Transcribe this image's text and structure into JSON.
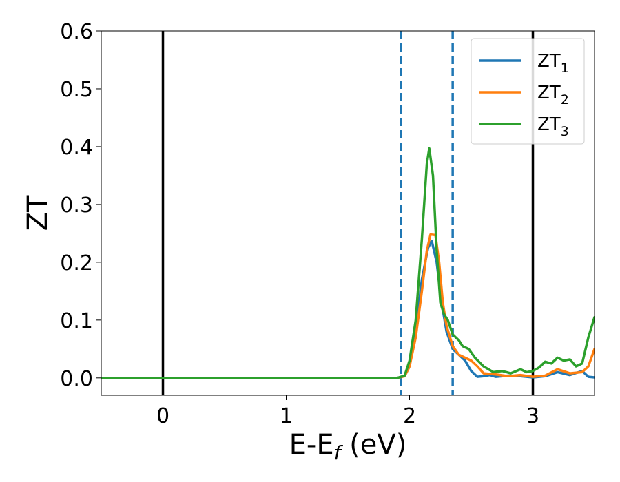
{
  "chart_data": {
    "type": "line",
    "xlabel": {
      "main": "E-E",
      "sub": "f",
      "tail": " (eV)"
    },
    "ylabel": "ZT",
    "xlim": [
      -0.5,
      3.5
    ],
    "ylim": [
      -0.03,
      0.6
    ],
    "xticks": [
      0,
      1,
      2,
      3
    ],
    "yticks": [
      0.0,
      0.1,
      0.2,
      0.3,
      0.4,
      0.5,
      0.6
    ],
    "ytick_labels": [
      "0.0",
      "0.1",
      "0.2",
      "0.3",
      "0.4",
      "0.5",
      "0.6"
    ],
    "xtick_labels": [
      "0",
      "1",
      "2",
      "3"
    ],
    "grid": false,
    "legend_position": "top-right",
    "vlines": [
      {
        "x": 0,
        "style": "solid",
        "color": "#000000"
      },
      {
        "x": 3,
        "style": "solid",
        "color": "#000000"
      },
      {
        "x": 1.93,
        "style": "dashed",
        "color": "#1f77b4"
      },
      {
        "x": 2.35,
        "style": "dashed",
        "color": "#1f77b4"
      }
    ],
    "series": [
      {
        "name": "ZT",
        "sub": "1",
        "color": "#1f77b4",
        "points": [
          [
            -0.5,
            0
          ],
          [
            1.9,
            0
          ],
          [
            1.96,
            0.003
          ],
          [
            2.0,
            0.02
          ],
          [
            2.05,
            0.08
          ],
          [
            2.1,
            0.17
          ],
          [
            2.15,
            0.225
          ],
          [
            2.18,
            0.237
          ],
          [
            2.22,
            0.2
          ],
          [
            2.26,
            0.13
          ],
          [
            2.3,
            0.08
          ],
          [
            2.35,
            0.05
          ],
          [
            2.4,
            0.04
          ],
          [
            2.45,
            0.03
          ],
          [
            2.5,
            0.012
          ],
          [
            2.55,
            0.002
          ],
          [
            2.6,
            0.003
          ],
          [
            2.65,
            0.005
          ],
          [
            2.7,
            0.002
          ],
          [
            2.8,
            0.004
          ],
          [
            2.9,
            0.003
          ],
          [
            3.0,
            0.001
          ],
          [
            3.1,
            0.003
          ],
          [
            3.2,
            0.01
          ],
          [
            3.3,
            0.005
          ],
          [
            3.4,
            0.012
          ],
          [
            3.45,
            0.002
          ],
          [
            3.5,
            0.001
          ]
        ]
      },
      {
        "name": "ZT",
        "sub": "2",
        "color": "#ff7f0e",
        "points": [
          [
            -0.5,
            0
          ],
          [
            1.9,
            0
          ],
          [
            1.96,
            0.003
          ],
          [
            2.0,
            0.02
          ],
          [
            2.05,
            0.07
          ],
          [
            2.1,
            0.15
          ],
          [
            2.14,
            0.22
          ],
          [
            2.17,
            0.248
          ],
          [
            2.21,
            0.247
          ],
          [
            2.24,
            0.2
          ],
          [
            2.27,
            0.13
          ],
          [
            2.3,
            0.09
          ],
          [
            2.35,
            0.055
          ],
          [
            2.4,
            0.04
          ],
          [
            2.45,
            0.035
          ],
          [
            2.5,
            0.03
          ],
          [
            2.55,
            0.02
          ],
          [
            2.6,
            0.008
          ],
          [
            2.7,
            0.006
          ],
          [
            2.8,
            0.003
          ],
          [
            2.9,
            0.005
          ],
          [
            3.0,
            0.002
          ],
          [
            3.1,
            0.004
          ],
          [
            3.2,
            0.015
          ],
          [
            3.3,
            0.008
          ],
          [
            3.4,
            0.01
          ],
          [
            3.45,
            0.02
          ],
          [
            3.5,
            0.05
          ]
        ]
      },
      {
        "name": "ZT",
        "sub": "3",
        "color": "#2ca02c",
        "points": [
          [
            -0.5,
            0
          ],
          [
            1.9,
            0
          ],
          [
            1.96,
            0.004
          ],
          [
            2.0,
            0.03
          ],
          [
            2.05,
            0.1
          ],
          [
            2.1,
            0.24
          ],
          [
            2.14,
            0.37
          ],
          [
            2.16,
            0.397
          ],
          [
            2.19,
            0.35
          ],
          [
            2.22,
            0.22
          ],
          [
            2.25,
            0.13
          ],
          [
            2.28,
            0.11
          ],
          [
            2.31,
            0.1
          ],
          [
            2.35,
            0.075
          ],
          [
            2.4,
            0.065
          ],
          [
            2.43,
            0.055
          ],
          [
            2.48,
            0.05
          ],
          [
            2.53,
            0.035
          ],
          [
            2.6,
            0.02
          ],
          [
            2.68,
            0.01
          ],
          [
            2.75,
            0.012
          ],
          [
            2.82,
            0.008
          ],
          [
            2.9,
            0.015
          ],
          [
            2.95,
            0.01
          ],
          [
            3.0,
            0.012
          ],
          [
            3.05,
            0.018
          ],
          [
            3.1,
            0.028
          ],
          [
            3.15,
            0.025
          ],
          [
            3.2,
            0.035
          ],
          [
            3.25,
            0.03
          ],
          [
            3.3,
            0.032
          ],
          [
            3.35,
            0.02
          ],
          [
            3.4,
            0.025
          ],
          [
            3.45,
            0.07
          ],
          [
            3.5,
            0.105
          ]
        ]
      }
    ]
  }
}
